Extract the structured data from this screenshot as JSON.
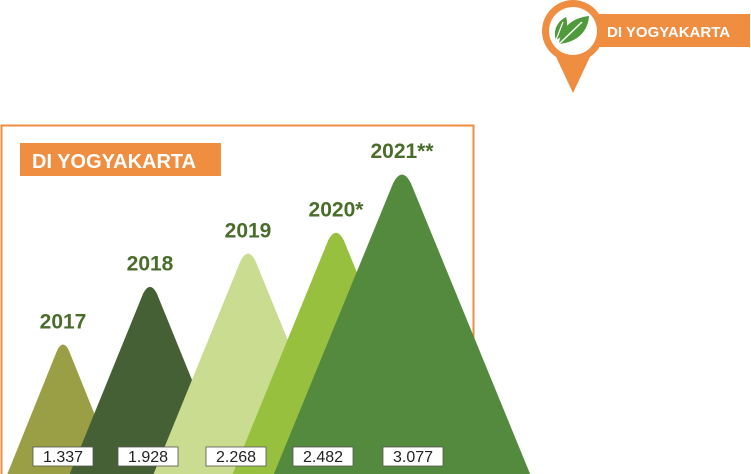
{
  "badge": {
    "label": "DI YOGYAKARTA",
    "icon": "leaf-icon",
    "pin_color": "#ef8d41",
    "leaf_color": "#4f9a3a"
  },
  "panel": {
    "title": "DI YOGYAKARTA",
    "border_color": "#ef8d41",
    "title_bg": "#ef8d41"
  },
  "chart_data": {
    "type": "bar",
    "categories": [
      "2017",
      "2018",
      "2019",
      "2020*",
      "2021**"
    ],
    "values": [
      1337,
      1928,
      2268,
      2482,
      3077
    ],
    "value_labels": [
      "1.337",
      "1.928",
      "2.268",
      "2.482",
      "3.077"
    ],
    "colors": [
      "#9a9f45",
      "#456034",
      "#c9dc90",
      "#97c03e",
      "#548a3d"
    ],
    "label_color": "#4a6d2b"
  }
}
